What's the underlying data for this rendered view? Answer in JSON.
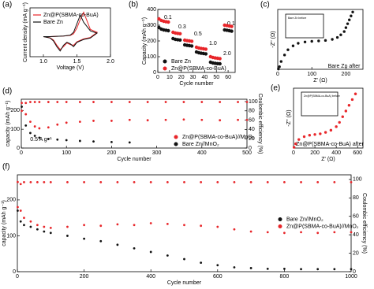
{
  "chart_data": [
    {
      "type": "line",
      "label": "(a)",
      "xlabel": "Voltage (V)",
      "ylabel": "Current density (mA g⁻¹)",
      "xlim": [
        0.8,
        2.0
      ],
      "ylim": [
        -0.7,
        1.0
      ],
      "xticks": [
        {
          "value": 1,
          "label": "1.0"
        },
        {
          "value": 1.5,
          "label": "1.5"
        },
        {
          "value": 2,
          "label": "2.0"
        }
      ],
      "legend": "upper left",
      "series": [
        {
          "name": "Zn@P(SBMA-co-BuA)",
          "color": "#e8262a",
          "x": [
            1.0,
            1.1,
            1.2,
            1.3,
            1.4,
            1.45,
            1.5,
            1.55,
            1.6,
            1.7,
            1.8,
            1.7,
            1.6,
            1.5,
            1.45,
            1.4,
            1.35,
            1.3,
            1.25,
            1.2,
            1.15,
            1.1,
            1.0
          ],
          "values": [
            0,
            0,
            0.01,
            0.02,
            0.04,
            0.1,
            0.3,
            0.6,
            0.85,
            0.25,
            0.15,
            -0.03,
            -0.08,
            -0.18,
            -0.3,
            -0.28,
            -0.22,
            -0.35,
            -0.45,
            -0.3,
            -0.12,
            -0.04,
            0
          ]
        },
        {
          "name": "Bare Zn",
          "color": "#111111",
          "x": [
            1.0,
            1.1,
            1.2,
            1.3,
            1.4,
            1.45,
            1.5,
            1.55,
            1.6,
            1.7,
            1.8,
            1.7,
            1.6,
            1.5,
            1.45,
            1.4,
            1.35,
            1.3,
            1.25,
            1.2,
            1.15,
            1.1,
            1.0
          ],
          "values": [
            0,
            0,
            0.01,
            0.02,
            0.05,
            0.15,
            0.45,
            0.75,
            0.5,
            0.2,
            0.12,
            -0.05,
            -0.1,
            -0.2,
            -0.35,
            -0.25,
            -0.2,
            -0.3,
            -0.5,
            -0.35,
            -0.15,
            -0.05,
            0
          ]
        }
      ]
    },
    {
      "type": "scatter",
      "label": "(b)",
      "xlabel": "Cycle number",
      "ylabel": "Capacity (mAh g⁻¹)",
      "xlim": [
        0,
        66
      ],
      "ylim": [
        0,
        400
      ],
      "xticks": [
        0,
        10,
        20,
        30,
        40,
        50,
        60
      ],
      "yticks": [
        0,
        100,
        200,
        300,
        400
      ],
      "legend": "lower left",
      "annotations": [
        "0.1",
        "0.3",
        "0.5",
        "1.0",
        "2.0",
        "0.1"
      ],
      "series": [
        {
          "name": "Bare Zn",
          "color": "#111111",
          "x": [
            1,
            3,
            5,
            7,
            9,
            13,
            15,
            17,
            19,
            23,
            25,
            27,
            29,
            33,
            35,
            37,
            39,
            41,
            45,
            47,
            49,
            51,
            53,
            57,
            59,
            61,
            63
          ],
          "values": [
            285,
            275,
            270,
            268,
            265,
            215,
            210,
            208,
            206,
            175,
            172,
            170,
            168,
            130,
            125,
            122,
            120,
            118,
            65,
            60,
            58,
            56,
            55,
            270,
            268,
            265,
            262
          ]
        },
        {
          "name": "Zn@P(SBMA-co-BuA)",
          "color": "#e8262a",
          "x": [
            1,
            3,
            5,
            7,
            9,
            13,
            15,
            17,
            19,
            23,
            25,
            27,
            29,
            33,
            35,
            37,
            39,
            41,
            45,
            47,
            49,
            51,
            53,
            57,
            59,
            61,
            63
          ],
          "values": [
            340,
            330,
            325,
            322,
            320,
            255,
            250,
            248,
            246,
            205,
            202,
            200,
            198,
            160,
            155,
            152,
            150,
            148,
            100,
            95,
            92,
            90,
            88,
            300,
            298,
            295,
            292
          ]
        }
      ]
    },
    {
      "type": "scatter",
      "label": "(c)",
      "xlabel": "Z' (Ω)",
      "ylabel": "-Z'' (Ω)",
      "xlim": [
        0,
        250
      ],
      "ylim": [
        0,
        460
      ],
      "xticks": [
        0,
        100,
        200
      ],
      "annotations": [
        "Bare Zn after"
      ],
      "inset_title": "Bare Zn before",
      "series": [
        {
          "color": "#111111",
          "x": [
            2,
            5,
            10,
            20,
            30,
            45,
            60,
            80,
            100,
            120,
            140,
            160,
            175,
            185,
            195,
            200,
            205,
            210,
            215,
            220
          ],
          "values": [
            2,
            20,
            60,
            110,
            150,
            180,
            200,
            210,
            215,
            218,
            222,
            230,
            245,
            265,
            290,
            320,
            350,
            380,
            410,
            440
          ]
        }
      ]
    },
    {
      "type": "scatter",
      "label": "(d)",
      "xlabel": "Cycle number",
      "ylabel": "capacity (mAh g⁻¹)",
      "y2label": "Coulombic efficiency (%)",
      "xlim": [
        0,
        500
      ],
      "ylim": [
        0,
        260
      ],
      "y2lim": [
        0,
        105
      ],
      "xticks": [
        0,
        100,
        200,
        300,
        400,
        500
      ],
      "yticks": [
        0,
        100,
        200
      ],
      "y2ticks": [
        0,
        20,
        40,
        60,
        80,
        100
      ],
      "legend": "lower right",
      "annotations": [
        "0.5 A g⁻¹"
      ],
      "series": [
        {
          "name": "Zn@P(SBMA-co-BuA)//MnO₂",
          "color": "#e8262a",
          "x": [
            1,
            10,
            20,
            30,
            40,
            60,
            80,
            100,
            130,
            160,
            200,
            240,
            280,
            320,
            360,
            400,
            440,
            480,
            500
          ],
          "values": [
            240,
            180,
            140,
            115,
            105,
            110,
            125,
            135,
            140,
            145,
            145,
            150,
            148,
            150,
            152,
            150,
            148,
            150,
            150
          ]
        },
        {
          "name": "Bare Zn//MnO₂",
          "color": "#111111",
          "x": [
            1,
            10,
            20,
            30,
            40,
            60,
            80,
            100,
            130,
            160,
            200,
            240,
            280,
            320,
            360,
            400,
            440,
            480,
            500
          ],
          "values": [
            220,
            120,
            80,
            65,
            55,
            48,
            45,
            42,
            38,
            35,
            32,
            30,
            null,
            null,
            null,
            null,
            null,
            null,
            null
          ]
        },
        {
          "color": "#e8262a",
          "axis": "y2",
          "x": [
            1,
            10,
            20,
            30,
            40,
            60,
            80,
            100,
            130,
            160,
            200,
            240,
            280,
            320,
            360,
            400,
            440,
            480,
            500
          ],
          "values": [
            80,
            97,
            99,
            99,
            99,
            99,
            99,
            99,
            99,
            99,
            99,
            99,
            99,
            99,
            99,
            99,
            99,
            99,
            99
          ]
        }
      ]
    },
    {
      "type": "scatter",
      "label": "(e)",
      "xlabel": "Z' (Ω)",
      "ylabel": "-Z'' (Ω)",
      "xlim": [
        0,
        650
      ],
      "ylim": [
        0,
        420
      ],
      "xticks": [
        0,
        200,
        400,
        600
      ],
      "annotations": [
        "Zn@P(SBMA-co-BuA) after"
      ],
      "inset_title": "Zn@P(SBMA-co-BuA) before",
      "series": [
        {
          "color": "#e8262a",
          "x": [
            5,
            20,
            50,
            100,
            150,
            200,
            250,
            300,
            350,
            400,
            430,
            460,
            490,
            520,
            550,
            580
          ],
          "values": [
            5,
            30,
            60,
            80,
            90,
            95,
            100,
            110,
            125,
            150,
            180,
            220,
            260,
            300,
            340,
            380
          ]
        }
      ]
    },
    {
      "type": "scatter",
      "label": "(f)",
      "xlabel": "Cycle number",
      "ylabel": "capacity (mAh g⁻¹)",
      "y2label": "Coulombic efficiency (%)",
      "xlim": [
        0,
        1000
      ],
      "ylim": [
        0,
        270
      ],
      "y2lim": [
        0,
        105
      ],
      "xticks": [
        0,
        200,
        400,
        600,
        800,
        1000
      ],
      "yticks": [
        0,
        100,
        200
      ],
      "y2ticks": [
        0,
        20,
        40,
        60,
        80,
        100
      ],
      "legend": "center right",
      "series": [
        {
          "name": "Bare Zn//MnO₂",
          "color": "#111111",
          "x": [
            1,
            10,
            20,
            40,
            60,
            80,
            100,
            150,
            200,
            250,
            300,
            350,
            400,
            450,
            500,
            550,
            600,
            650,
            700,
            750,
            800,
            850,
            900,
            950,
            1000
          ],
          "values": [
            170,
            140,
            130,
            125,
            118,
            112,
            108,
            100,
            92,
            85,
            75,
            65,
            55,
            45,
            35,
            25,
            18,
            12,
            10,
            8,
            8,
            7,
            7,
            7,
            7
          ]
        },
        {
          "name": "Zn@P(SBMA-co-BuA)//MnO₂",
          "color": "#e8262a",
          "x": [
            1,
            10,
            20,
            40,
            60,
            80,
            100,
            150,
            200,
            250,
            300,
            350,
            400,
            450,
            500,
            550,
            600,
            650,
            700,
            750,
            800,
            850,
            900,
            950,
            1000
          ],
          "values": [
            250,
            170,
            150,
            140,
            130,
            125,
            122,
            125,
            130,
            128,
            132,
            130,
            135,
            133,
            130,
            128,
            125,
            118,
            112,
            110,
            108,
            110,
            108,
            110,
            110
          ]
        },
        {
          "color": "#e8262a",
          "axis": "y2",
          "x": [
            1,
            10,
            20,
            40,
            60,
            80,
            100,
            150,
            200,
            250,
            300,
            350,
            400,
            450,
            500,
            550,
            600,
            650,
            700,
            750,
            800,
            850,
            900,
            950,
            1000
          ],
          "values": [
            70,
            95,
            97,
            97,
            97,
            97,
            97,
            97,
            97,
            97,
            97,
            97,
            97,
            97,
            97,
            97,
            97,
            97,
            97,
            97,
            97,
            97,
            97,
            97,
            97
          ]
        }
      ]
    }
  ]
}
